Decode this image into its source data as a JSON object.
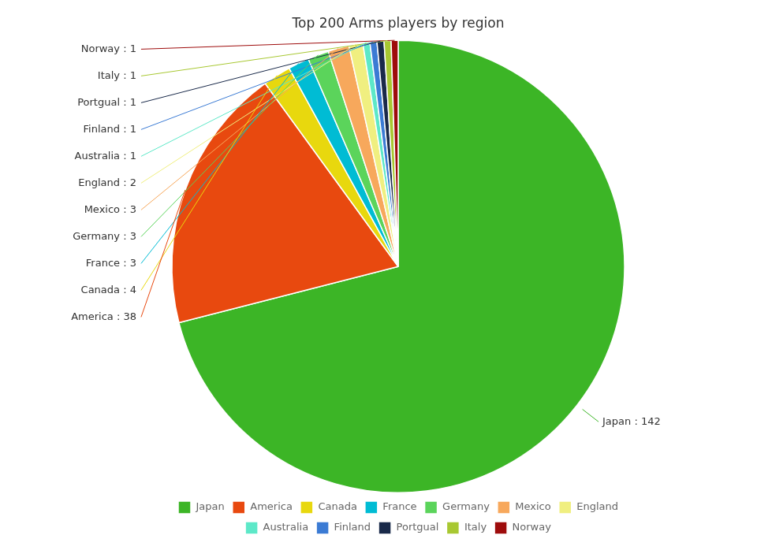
{
  "chart_data": {
    "type": "pie",
    "title": "Top 200 Arms players by region",
    "categories": [
      "Japan",
      "America",
      "Canada",
      "France",
      "Germany",
      "Mexico",
      "England",
      "Australia",
      "Finland",
      "Portgual",
      "Italy",
      "Norway"
    ],
    "values": [
      142,
      38,
      4,
      3,
      3,
      3,
      2,
      1,
      1,
      1,
      1,
      1
    ],
    "colors": [
      "#3cb526",
      "#e8490f",
      "#e8d80e",
      "#00bcd4",
      "#5bd45b",
      "#f7a85c",
      "#f0ef80",
      "#5de8c8",
      "#3b7bd4",
      "#1a2a4a",
      "#a8c832",
      "#9e0c0c"
    ],
    "data_labels": true,
    "value_labels": [
      "Japan : 142",
      "America : 38",
      "Canada : 4",
      "France : 3",
      "Germany : 3",
      "Mexico : 3",
      "England : 2",
      "Australia : 1",
      "Finland : 1",
      "Portgual : 1",
      "Italy : 1",
      "Norway : 1"
    ],
    "legend": "bottom"
  }
}
